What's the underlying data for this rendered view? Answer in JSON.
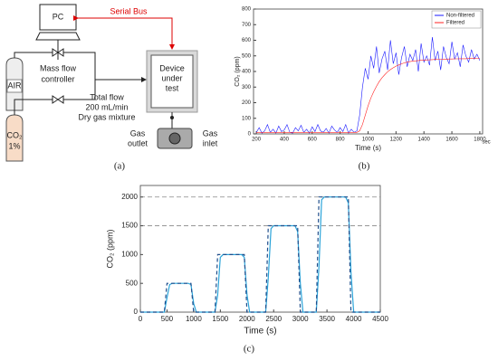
{
  "diagram": {
    "pc": "PC",
    "serial_bus": "Serial Bus",
    "air": "AIR",
    "co2": [
      "CO₂",
      "1%"
    ],
    "mass_flow": [
      "Mass flow",
      "controller"
    ],
    "device": [
      "Device",
      "under",
      "test"
    ],
    "total_flow": [
      "Total flow",
      "200 mL/min",
      "Dry gas mixture"
    ],
    "gas_outlet": [
      "Gas",
      "outlet"
    ],
    "gas_inlet": [
      "Gas",
      "inlet"
    ]
  },
  "captions": [
    "(a)",
    "(b)",
    "(c)"
  ],
  "chart_data": [
    {
      "type": "line",
      "x_label": "Time (s)",
      "x_unit": "sec",
      "y_label": "CO₂ (ppm)",
      "x": [
        200,
        220,
        240,
        260,
        280,
        300,
        320,
        340,
        360,
        380,
        400,
        420,
        440,
        460,
        480,
        500,
        520,
        540,
        560,
        580,
        600,
        620,
        640,
        660,
        680,
        700,
        720,
        740,
        760,
        780,
        800,
        820,
        840,
        860,
        880,
        900,
        920,
        940,
        960,
        980,
        1000,
        1020,
        1040,
        1060,
        1080,
        1100,
        1120,
        1140,
        1160,
        1180,
        1200,
        1220,
        1240,
        1260,
        1280,
        1300,
        1320,
        1340,
        1360,
        1380,
        1400,
        1420,
        1440,
        1460,
        1480,
        1500,
        1520,
        1540,
        1560,
        1580,
        1600,
        1620,
        1640,
        1660,
        1680,
        1700,
        1720,
        1740,
        1760,
        1780,
        1800
      ],
      "series": [
        {
          "name": "Non-filtered",
          "color": "#1a1aff",
          "values": [
            10,
            40,
            5,
            20,
            60,
            10,
            30,
            5,
            50,
            15,
            25,
            60,
            10,
            5,
            40,
            20,
            55,
            10,
            30,
            5,
            45,
            15,
            60,
            20,
            10,
            35,
            5,
            50,
            25,
            10,
            40,
            15,
            60,
            5,
            30,
            10,
            20,
            120,
            300,
            420,
            350,
            500,
            420,
            560,
            390,
            480,
            530,
            410,
            600,
            450,
            520,
            380,
            490,
            560,
            430,
            510,
            470,
            540,
            400,
            580,
            460,
            500,
            440,
            620,
            470,
            530,
            410,
            560,
            490,
            450,
            590,
            480,
            520,
            430,
            570,
            500,
            460,
            540,
            480,
            510,
            470
          ]
        },
        {
          "name": "Filtered",
          "color": "#ff2020",
          "values": [
            10,
            10,
            10,
            10,
            10,
            10,
            10,
            10,
            10,
            10,
            10,
            10,
            10,
            10,
            10,
            10,
            10,
            10,
            10,
            10,
            10,
            10,
            10,
            10,
            10,
            10,
            10,
            10,
            10,
            10,
            10,
            10,
            10,
            10,
            10,
            10,
            10,
            20,
            60,
            120,
            180,
            230,
            270,
            305,
            335,
            360,
            380,
            398,
            412,
            424,
            434,
            442,
            449,
            455,
            460,
            463,
            466,
            468,
            470,
            472,
            473,
            474,
            475,
            476,
            477,
            478,
            478,
            479,
            479,
            480,
            480,
            481,
            481,
            482,
            482,
            482,
            483,
            483,
            483,
            484,
            484
          ]
        }
      ],
      "xlim": [
        180,
        1820
      ],
      "xticks": [
        200,
        400,
        600,
        800,
        1000,
        1200,
        1400,
        1600,
        1800
      ],
      "ylim": [
        0,
        800
      ],
      "yticks": [
        0,
        100,
        200,
        300,
        400,
        500,
        600,
        700,
        800
      ],
      "legend": "upper right"
    },
    {
      "type": "line",
      "x_label": "Time (s)",
      "y_label": "CO₂ (ppm)",
      "x": [
        0,
        450,
        500,
        550,
        600,
        900,
        950,
        1000,
        1050,
        1400,
        1450,
        1500,
        1550,
        1900,
        1950,
        2000,
        2050,
        2350,
        2400,
        2450,
        2500,
        2900,
        2950,
        3000,
        3050,
        3300,
        3350,
        3400,
        3450,
        3850,
        3900,
        3950,
        4000,
        4500
      ],
      "series": [
        {
          "color": "#29a3d9",
          "values": [
            0,
            0,
            250,
            480,
            500,
            500,
            480,
            150,
            0,
            0,
            300,
            950,
            1000,
            1000,
            950,
            300,
            0,
            0,
            600,
            1450,
            1500,
            1500,
            1400,
            500,
            0,
            0,
            800,
            1950,
            2000,
            2000,
            1900,
            700,
            0,
            0
          ]
        },
        {
          "color": "#1f4e8c",
          "style": "dashed",
          "values": [
            0,
            0,
            500,
            500,
            500,
            500,
            500,
            0,
            0,
            0,
            1000,
            1000,
            1000,
            1000,
            1000,
            0,
            0,
            0,
            1500,
            1500,
            1500,
            1500,
            1500,
            0,
            0,
            0,
            2000,
            2000,
            2000,
            2000,
            2000,
            0,
            0,
            0
          ]
        }
      ],
      "reference_lines": [
        1500,
        2000
      ],
      "xlim": [
        0,
        4500
      ],
      "xticks": [
        0,
        500,
        1000,
        1500,
        2000,
        2500,
        3000,
        3500,
        4000,
        4500
      ],
      "ylim": [
        0,
        2200
      ],
      "yticks": [
        0,
        500,
        1000,
        1500,
        2000
      ]
    }
  ]
}
